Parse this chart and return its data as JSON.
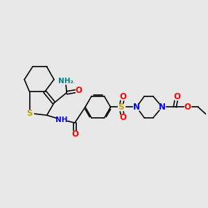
{
  "bg_color": "#e8e8e8",
  "bond_color": "#000000",
  "bond_width": 1.2,
  "atom_colors": {
    "N": "#0000ff",
    "O": "#ff0000",
    "S_thio": "#c8a000",
    "S_sulfo": "#c8a000",
    "H_teal": "#008080"
  },
  "font_size": 7.5,
  "fig_width": 3.0,
  "fig_height": 3.0,
  "xlim": [
    0,
    10
  ],
  "ylim": [
    0,
    10
  ]
}
